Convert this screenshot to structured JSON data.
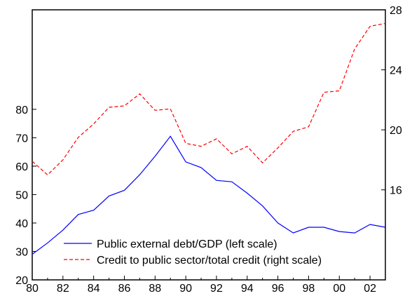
{
  "chart_data": {
    "type": "line",
    "title": "",
    "xlabel": "",
    "x": [
      1980,
      1981,
      1982,
      1983,
      1984,
      1985,
      1986,
      1987,
      1988,
      1989,
      1990,
      1991,
      1992,
      1993,
      1994,
      1995,
      1996,
      1997,
      1998,
      1999,
      2000,
      2001,
      2002,
      2003
    ],
    "x_ticks": [
      "80",
      "82",
      "84",
      "86",
      "88",
      "90",
      "92",
      "94",
      "96",
      "98",
      "00",
      "02"
    ],
    "xlim": [
      1980,
      2003
    ],
    "left_axis": {
      "ticks": [
        "20",
        "30",
        "40",
        "50",
        "60",
        "70",
        "80"
      ],
      "ylim": [
        20,
        115
      ]
    },
    "right_axis": {
      "ticks": [
        "16",
        "20",
        "24",
        "28"
      ],
      "ylim": [
        10,
        28
      ]
    },
    "series": [
      {
        "name": "Public external debt/GDP (left scale)",
        "axis": "left",
        "color": "#0000ff",
        "dash": "solid",
        "values": [
          29,
          33,
          37.5,
          43,
          44.5,
          49.5,
          51.5,
          57,
          63.5,
          70.5,
          61.5,
          59.5,
          55,
          54.5,
          50.5,
          46,
          40,
          36.5,
          38.5,
          38.5,
          37,
          36.5,
          39.5,
          38.5
        ]
      },
      {
        "name": "Credit to public sector/total credit (right scale)",
        "axis": "right",
        "color": "#ff0000",
        "dash": "dashed",
        "values": [
          17.9,
          17.0,
          18.0,
          19.5,
          20.4,
          21.5,
          21.6,
          22.4,
          21.3,
          21.4,
          19.1,
          18.9,
          19.4,
          18.4,
          18.9,
          17.8,
          18.8,
          19.9,
          20.2,
          22.5,
          22.6,
          25.4,
          26.9,
          27.1
        ]
      }
    ],
    "legend_position": "bottom-right",
    "grid": false
  }
}
